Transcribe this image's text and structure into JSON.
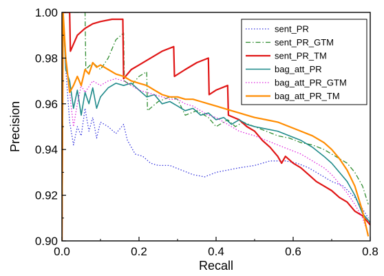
{
  "chart_data": {
    "type": "line",
    "title": "",
    "xlabel": "Recall",
    "ylabel": "Precision",
    "xlim": [
      0.0,
      0.8
    ],
    "ylim": [
      0.9,
      1.0
    ],
    "x_ticks": [
      0.0,
      0.2,
      0.4,
      0.6,
      0.8
    ],
    "y_ticks": [
      0.9,
      0.92,
      0.94,
      0.96,
      0.98,
      1.0
    ],
    "x_tick_labels": [
      "0.0",
      "0.2",
      "0.4",
      "0.6",
      "0.8"
    ],
    "y_tick_labels": [
      "0.90",
      "0.92",
      "0.94",
      "0.96",
      "0.98",
      "1.00"
    ],
    "grid": false,
    "legend_position": "top-right",
    "series": [
      {
        "name": "sent_PR",
        "color": "#3333dd",
        "dash": "dotted",
        "width": 1.3,
        "points": [
          [
            0.0,
            0.9
          ],
          [
            0.003,
            1.0
          ],
          [
            0.01,
            0.975
          ],
          [
            0.02,
            0.952
          ],
          [
            0.03,
            0.942
          ],
          [
            0.04,
            0.95
          ],
          [
            0.05,
            0.946
          ],
          [
            0.06,
            0.958
          ],
          [
            0.07,
            0.948
          ],
          [
            0.08,
            0.954
          ],
          [
            0.09,
            0.945
          ],
          [
            0.1,
            0.952
          ],
          [
            0.12,
            0.95
          ],
          [
            0.14,
            0.947
          ],
          [
            0.16,
            0.951
          ],
          [
            0.17,
            0.944
          ],
          [
            0.19,
            0.938
          ],
          [
            0.21,
            0.937
          ],
          [
            0.23,
            0.934
          ],
          [
            0.25,
            0.933
          ],
          [
            0.28,
            0.933
          ],
          [
            0.31,
            0.931
          ],
          [
            0.34,
            0.929
          ],
          [
            0.37,
            0.928
          ],
          [
            0.4,
            0.93
          ],
          [
            0.43,
            0.931
          ],
          [
            0.46,
            0.932
          ],
          [
            0.5,
            0.933
          ],
          [
            0.54,
            0.935
          ],
          [
            0.58,
            0.935
          ],
          [
            0.61,
            0.934
          ],
          [
            0.64,
            0.932
          ],
          [
            0.67,
            0.929
          ],
          [
            0.7,
            0.926
          ],
          [
            0.73,
            0.924
          ],
          [
            0.76,
            0.919
          ],
          [
            0.78,
            0.914
          ],
          [
            0.795,
            0.91
          ]
        ]
      },
      {
        "name": "sent_PR_GTM",
        "color": "#2e8b2e",
        "dash": "dashdot",
        "width": 1.3,
        "points": [
          [
            0.0,
            0.9
          ],
          [
            0.003,
            1.0
          ],
          [
            0.06,
            1.0
          ],
          [
            0.062,
            0.975
          ],
          [
            0.08,
            0.978
          ],
          [
            0.1,
            0.975
          ],
          [
            0.12,
            0.98
          ],
          [
            0.14,
            0.988
          ],
          [
            0.16,
            0.991
          ],
          [
            0.162,
            0.97
          ],
          [
            0.18,
            0.968
          ],
          [
            0.2,
            0.972
          ],
          [
            0.22,
            0.974
          ],
          [
            0.222,
            0.957
          ],
          [
            0.25,
            0.961
          ],
          [
            0.28,
            0.963
          ],
          [
            0.3,
            0.962
          ],
          [
            0.32,
            0.955
          ],
          [
            0.35,
            0.957
          ],
          [
            0.38,
            0.954
          ],
          [
            0.4,
            0.95
          ],
          [
            0.43,
            0.953
          ],
          [
            0.45,
            0.95
          ],
          [
            0.47,
            0.952
          ],
          [
            0.5,
            0.95
          ],
          [
            0.53,
            0.948
          ],
          [
            0.56,
            0.946
          ],
          [
            0.59,
            0.945
          ],
          [
            0.62,
            0.943
          ],
          [
            0.65,
            0.942
          ],
          [
            0.68,
            0.94
          ],
          [
            0.71,
            0.937
          ],
          [
            0.74,
            0.934
          ],
          [
            0.76,
            0.93
          ],
          [
            0.78,
            0.924
          ],
          [
            0.795,
            0.916
          ]
        ]
      },
      {
        "name": "sent_PR_TM",
        "color": "#e01515",
        "dash": "solid",
        "width": 2.2,
        "points": [
          [
            0.0,
            0.9
          ],
          [
            0.003,
            1.0
          ],
          [
            0.02,
            1.0
          ],
          [
            0.022,
            0.983
          ],
          [
            0.04,
            0.99
          ],
          [
            0.06,
            0.993
          ],
          [
            0.08,
            0.995
          ],
          [
            0.1,
            0.996
          ],
          [
            0.13,
            0.997
          ],
          [
            0.158,
            0.997
          ],
          [
            0.16,
            0.971
          ],
          [
            0.18,
            0.975
          ],
          [
            0.2,
            0.977
          ],
          [
            0.23,
            0.98
          ],
          [
            0.26,
            0.983
          ],
          [
            0.29,
            0.985
          ],
          [
            0.292,
            0.972
          ],
          [
            0.32,
            0.975
          ],
          [
            0.35,
            0.978
          ],
          [
            0.38,
            0.98
          ],
          [
            0.382,
            0.964
          ],
          [
            0.4,
            0.966
          ],
          [
            0.43,
            0.968
          ],
          [
            0.432,
            0.955
          ],
          [
            0.46,
            0.953
          ],
          [
            0.48,
            0.95
          ],
          [
            0.5,
            0.948
          ],
          [
            0.52,
            0.944
          ],
          [
            0.54,
            0.941
          ],
          [
            0.56,
            0.937
          ],
          [
            0.57,
            0.934
          ],
          [
            0.58,
            0.937
          ],
          [
            0.6,
            0.934
          ],
          [
            0.62,
            0.932
          ],
          [
            0.64,
            0.929
          ],
          [
            0.66,
            0.926
          ],
          [
            0.68,
            0.924
          ],
          [
            0.7,
            0.922
          ],
          [
            0.72,
            0.919
          ],
          [
            0.74,
            0.917
          ],
          [
            0.76,
            0.913
          ],
          [
            0.78,
            0.911
          ],
          [
            0.8,
            0.907
          ]
        ]
      },
      {
        "name": "bag_att_PR",
        "color": "#1f8a8a",
        "dash": "solid",
        "width": 1.6,
        "points": [
          [
            0.0,
            0.9
          ],
          [
            0.003,
            1.0
          ],
          [
            0.01,
            0.975
          ],
          [
            0.02,
            0.97
          ],
          [
            0.03,
            0.958
          ],
          [
            0.04,
            0.966
          ],
          [
            0.05,
            0.955
          ],
          [
            0.06,
            0.965
          ],
          [
            0.07,
            0.96
          ],
          [
            0.08,
            0.967
          ],
          [
            0.09,
            0.958
          ],
          [
            0.1,
            0.963
          ],
          [
            0.12,
            0.967
          ],
          [
            0.14,
            0.969
          ],
          [
            0.16,
            0.968
          ],
          [
            0.18,
            0.969
          ],
          [
            0.2,
            0.966
          ],
          [
            0.22,
            0.963
          ],
          [
            0.24,
            0.964
          ],
          [
            0.26,
            0.96
          ],
          [
            0.28,
            0.961
          ],
          [
            0.3,
            0.959
          ],
          [
            0.32,
            0.957
          ],
          [
            0.34,
            0.958
          ],
          [
            0.36,
            0.955
          ],
          [
            0.38,
            0.956
          ],
          [
            0.4,
            0.953
          ],
          [
            0.42,
            0.954
          ],
          [
            0.44,
            0.951
          ],
          [
            0.46,
            0.953
          ],
          [
            0.48,
            0.951
          ],
          [
            0.5,
            0.95
          ],
          [
            0.53,
            0.949
          ],
          [
            0.56,
            0.948
          ],
          [
            0.59,
            0.946
          ],
          [
            0.62,
            0.944
          ],
          [
            0.65,
            0.941
          ],
          [
            0.68,
            0.937
          ],
          [
            0.7,
            0.934
          ],
          [
            0.72,
            0.93
          ],
          [
            0.74,
            0.926
          ],
          [
            0.76,
            0.92
          ],
          [
            0.78,
            0.912
          ],
          [
            0.8,
            0.908
          ]
        ]
      },
      {
        "name": "bag_att_PR_GTM",
        "color": "#dd22dd",
        "dash": "dotted",
        "width": 1.3,
        "points": [
          [
            0.0,
            0.9
          ],
          [
            0.003,
            1.0
          ],
          [
            0.01,
            0.978
          ],
          [
            0.02,
            0.965
          ],
          [
            0.03,
            0.95
          ],
          [
            0.04,
            0.96
          ],
          [
            0.05,
            0.968
          ],
          [
            0.06,
            0.965
          ],
          [
            0.08,
            0.97
          ],
          [
            0.1,
            0.968
          ],
          [
            0.12,
            0.97
          ],
          [
            0.14,
            0.971
          ],
          [
            0.16,
            0.97
          ],
          [
            0.18,
            0.968
          ],
          [
            0.2,
            0.966
          ],
          [
            0.22,
            0.965
          ],
          [
            0.24,
            0.964
          ],
          [
            0.26,
            0.963
          ],
          [
            0.28,
            0.962
          ],
          [
            0.3,
            0.962
          ],
          [
            0.32,
            0.96
          ],
          [
            0.34,
            0.959
          ],
          [
            0.36,
            0.957
          ],
          [
            0.38,
            0.955
          ],
          [
            0.4,
            0.954
          ],
          [
            0.42,
            0.952
          ],
          [
            0.44,
            0.95
          ],
          [
            0.46,
            0.948
          ],
          [
            0.48,
            0.947
          ],
          [
            0.5,
            0.946
          ],
          [
            0.53,
            0.944
          ],
          [
            0.56,
            0.942
          ],
          [
            0.59,
            0.94
          ],
          [
            0.62,
            0.938
          ],
          [
            0.65,
            0.935
          ],
          [
            0.68,
            0.932
          ],
          [
            0.7,
            0.929
          ],
          [
            0.72,
            0.925
          ],
          [
            0.74,
            0.921
          ],
          [
            0.76,
            0.916
          ],
          [
            0.78,
            0.91
          ],
          [
            0.795,
            0.903
          ]
        ]
      },
      {
        "name": "bag_att_PR_TM",
        "color": "#ff8c00",
        "dash": "solid",
        "width": 2.2,
        "points": [
          [
            0.0,
            0.9
          ],
          [
            0.003,
            1.0
          ],
          [
            0.01,
            0.98
          ],
          [
            0.02,
            0.965
          ],
          [
            0.03,
            0.968
          ],
          [
            0.04,
            0.972
          ],
          [
            0.05,
            0.968
          ],
          [
            0.06,
            0.975
          ],
          [
            0.07,
            0.973
          ],
          [
            0.08,
            0.978
          ],
          [
            0.09,
            0.976
          ],
          [
            0.1,
            0.977
          ],
          [
            0.12,
            0.975
          ],
          [
            0.14,
            0.973
          ],
          [
            0.16,
            0.972
          ],
          [
            0.18,
            0.97
          ],
          [
            0.2,
            0.969
          ],
          [
            0.22,
            0.968
          ],
          [
            0.24,
            0.966
          ],
          [
            0.26,
            0.964
          ],
          [
            0.28,
            0.963
          ],
          [
            0.3,
            0.963
          ],
          [
            0.32,
            0.962
          ],
          [
            0.34,
            0.962
          ],
          [
            0.36,
            0.961
          ],
          [
            0.38,
            0.96
          ],
          [
            0.4,
            0.959
          ],
          [
            0.42,
            0.958
          ],
          [
            0.44,
            0.957
          ],
          [
            0.46,
            0.956
          ],
          [
            0.48,
            0.955
          ],
          [
            0.5,
            0.954
          ],
          [
            0.53,
            0.953
          ],
          [
            0.56,
            0.952
          ],
          [
            0.59,
            0.95
          ],
          [
            0.62,
            0.948
          ],
          [
            0.65,
            0.946
          ],
          [
            0.68,
            0.943
          ],
          [
            0.7,
            0.94
          ],
          [
            0.72,
            0.936
          ],
          [
            0.74,
            0.931
          ],
          [
            0.76,
            0.924
          ],
          [
            0.78,
            0.913
          ],
          [
            0.795,
            0.902
          ]
        ]
      }
    ]
  }
}
